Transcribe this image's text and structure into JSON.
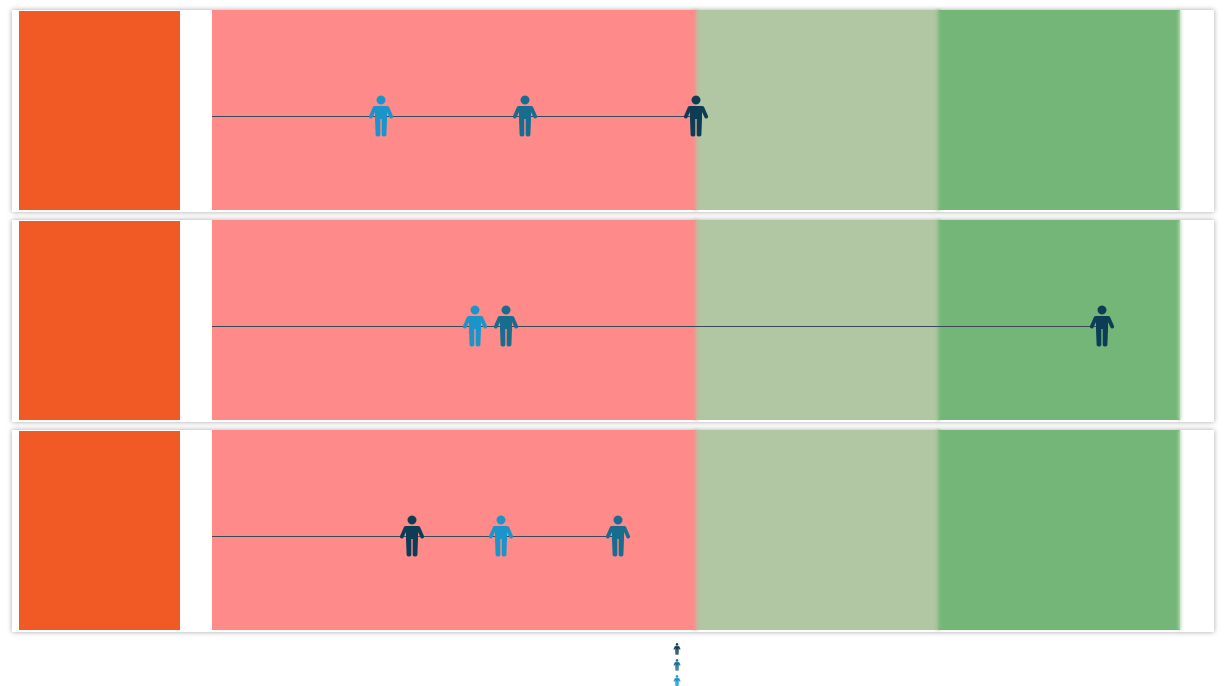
{
  "colors": {
    "label_block": "#f15a24",
    "zone_red": "#ff8a8a",
    "zone_light_green": "#b1c6a3",
    "zone_green": "#74b677",
    "track_line": "#3a4a55",
    "person_light": "#1b95c9",
    "person_mid": "#176d8e",
    "person_dark": "#0d3d55"
  },
  "icons": {
    "marker": "person-icon"
  },
  "chart_data": {
    "type": "scatter",
    "title": "",
    "xlabel": "",
    "ylabel": "",
    "xlim": [
      0,
      100
    ],
    "zones": [
      {
        "from": 0,
        "to": 50,
        "color": "#ff8a8a"
      },
      {
        "from": 50,
        "to": 75,
        "color": "#b1c6a3"
      },
      {
        "from": 75,
        "to": 100,
        "color": "#74b677"
      }
    ],
    "rows": [
      {
        "label": "",
        "markers": [
          {
            "series": 2,
            "value": 17.5
          },
          {
            "series": 1,
            "value": 32.3
          },
          {
            "series": 0,
            "value": 50.0
          }
        ]
      },
      {
        "label": "",
        "markers": [
          {
            "series": 2,
            "value": 27.2
          },
          {
            "series": 1,
            "value": 30.4
          },
          {
            "series": 0,
            "value": 91.9
          }
        ]
      },
      {
        "label": "",
        "markers": [
          {
            "series": 0,
            "value": 20.7
          },
          {
            "series": 2,
            "value": 29.9
          },
          {
            "series": 1,
            "value": 41.9
          }
        ]
      }
    ],
    "series": [
      {
        "color": "#0d3d55"
      },
      {
        "color": "#176d8e"
      },
      {
        "color": "#1b95c9"
      }
    ],
    "legend_position": "bottom-center"
  }
}
